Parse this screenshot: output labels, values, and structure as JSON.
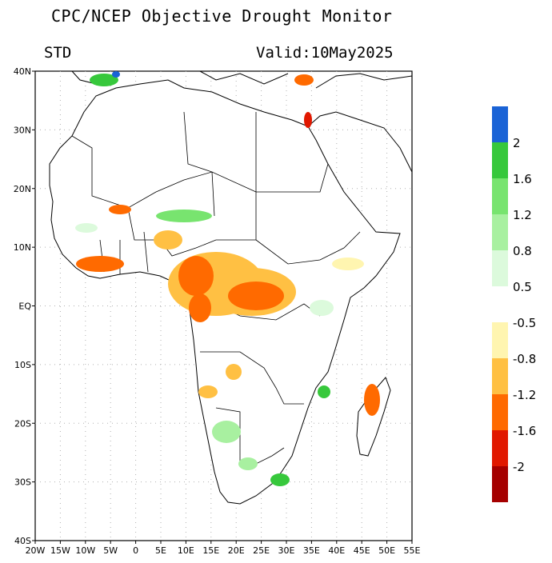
{
  "header": {
    "title": "CPC/NCEP Objective Drought Monitor",
    "variable": "STD",
    "valid": "Valid:10May2025"
  },
  "map": {
    "region": "Africa",
    "lon_range": [
      -20,
      55
    ],
    "lat_range": [
      -40,
      40
    ],
    "gridlines": true,
    "x_ticks": [
      "20W",
      "15W",
      "10W",
      "5W",
      "0",
      "5E",
      "10E",
      "15E",
      "20E",
      "25E",
      "30E",
      "35E",
      "40E",
      "45E",
      "50E",
      "55E"
    ],
    "y_ticks": [
      "40N",
      "30N",
      "20N",
      "10N",
      "EQ",
      "10S",
      "20S",
      "30S",
      "40S"
    ]
  },
  "legend": {
    "wet_colors": [
      "#1a63d6",
      "#37c83c",
      "#78e46f",
      "#a8f0a0",
      "#dcfadc"
    ],
    "wet_labels": [
      "2",
      "1.6",
      "1.2",
      "0.8",
      "0.5"
    ],
    "dry_colors": [
      "#fff5b0",
      "#ffc043",
      "#ff6a00",
      "#e11800",
      "#a50000"
    ],
    "dry_labels": [
      "-0.5",
      "-0.8",
      "-1.2",
      "-1.6",
      "-2"
    ]
  }
}
